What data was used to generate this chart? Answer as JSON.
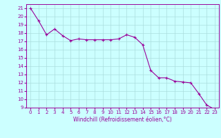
{
  "x": [
    0,
    1,
    2,
    3,
    4,
    5,
    6,
    7,
    8,
    9,
    10,
    11,
    12,
    13,
    14,
    15,
    16,
    17,
    18,
    19,
    20,
    21,
    22,
    23
  ],
  "y": [
    21,
    19.5,
    17.8,
    18.5,
    17.7,
    17.1,
    17.3,
    17.2,
    17.2,
    17.2,
    17.2,
    17.3,
    17.8,
    17.5,
    16.6,
    13.5,
    12.6,
    12.6,
    12.2,
    12.1,
    12.0,
    10.7,
    9.3,
    8.8
  ],
  "line_color": "#990099",
  "marker": "+",
  "marker_size": 3,
  "bg_color": "#ccffff",
  "grid_color": "#aadddd",
  "xlabel": "Windchill (Refroidissement éolien,°C)",
  "xlabel_color": "#990099",
  "tick_color": "#990099",
  "ylim": [
    9,
    21.5
  ],
  "xlim": [
    -0.5,
    23.5
  ],
  "yticks": [
    9,
    10,
    11,
    12,
    13,
    14,
    15,
    16,
    17,
    18,
    19,
    20,
    21
  ],
  "xticks": [
    0,
    1,
    2,
    3,
    4,
    5,
    6,
    7,
    8,
    9,
    10,
    11,
    12,
    13,
    14,
    15,
    16,
    17,
    18,
    19,
    20,
    21,
    22,
    23
  ],
  "tick_fontsize": 5,
  "xlabel_fontsize": 5.5
}
